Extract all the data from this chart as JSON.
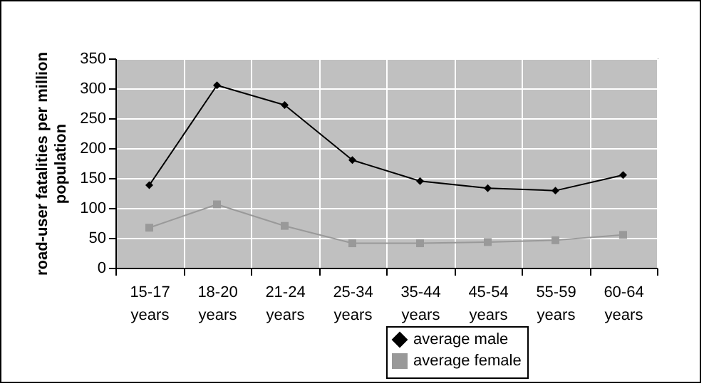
{
  "chart_data": {
    "type": "line",
    "ylabel": "road-user fatalities per million population",
    "categories": [
      "15-17 years",
      "18-20 years",
      "21-24 years",
      "25-34 years",
      "35-44 years",
      "45-54 years",
      "55-59 years",
      "60-64 years"
    ],
    "series": [
      {
        "name": "average male",
        "color": "#000000",
        "marker": "diamond",
        "values": [
          138,
          305,
          272,
          180,
          145,
          133,
          129,
          155
        ]
      },
      {
        "name": "average female",
        "color": "#999999",
        "marker": "square",
        "values": [
          67,
          106,
          70,
          41,
          41,
          43,
          46,
          55
        ]
      }
    ],
    "ylim": [
      0,
      350
    ],
    "yticks": [
      0,
      50,
      100,
      150,
      200,
      250,
      300,
      350
    ],
    "grid": true,
    "legend": "bottom right"
  }
}
